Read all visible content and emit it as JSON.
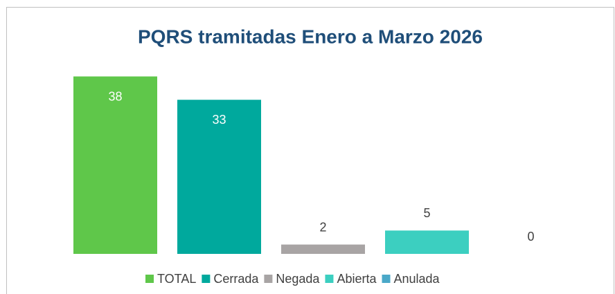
{
  "chart_data": {
    "type": "bar",
    "title": "PQRS tramitadas Enero a Marzo 2026",
    "categories": [
      null
    ],
    "series": [
      {
        "name": "TOTAL",
        "color": "#5fc74a",
        "values": [
          38
        ]
      },
      {
        "name": "Cerrada",
        "color": "#00a99d",
        "values": [
          33
        ]
      },
      {
        "name": "Negada",
        "color": "#a8a4a4",
        "values": [
          2
        ]
      },
      {
        "name": "Abierta",
        "color": "#3ccfc0",
        "values": [
          5
        ]
      },
      {
        "name": "Anulada",
        "color": "#4aa8c8",
        "values": [
          0
        ]
      }
    ],
    "ylim": [
      0,
      40
    ],
    "grid": false,
    "legend": "bottom"
  }
}
